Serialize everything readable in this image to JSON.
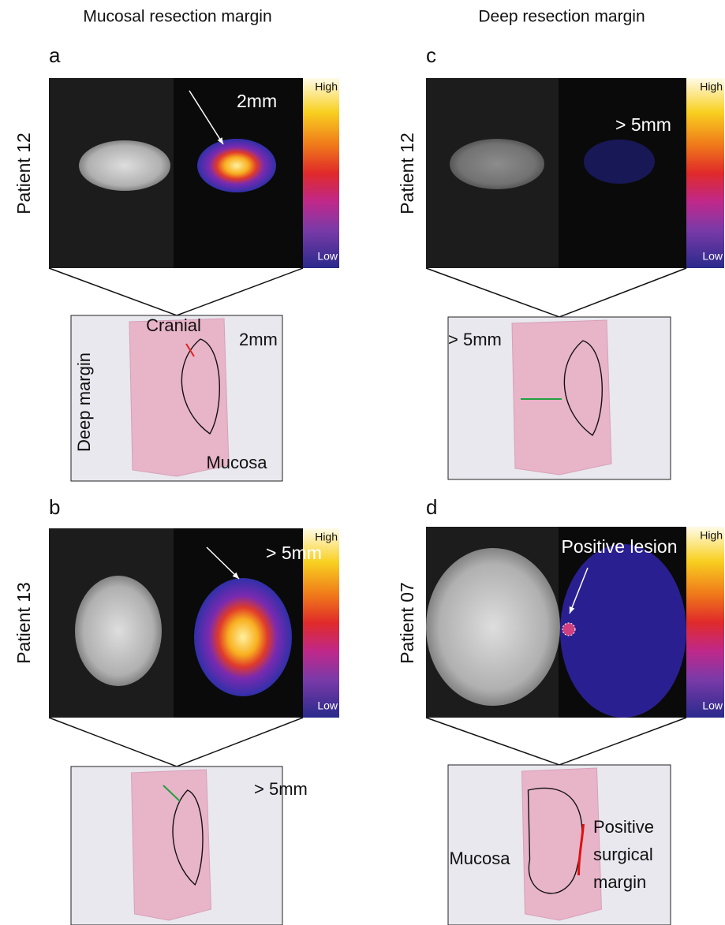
{
  "columns": [
    "Mucosal resection margin",
    "Deep resection margin"
  ],
  "panels": [
    {
      "letter": "a",
      "patient": "Patient 12",
      "annotation": "2mm",
      "colorbar": {
        "high": "High",
        "low": "Low"
      },
      "histology_labels": [
        "Cranial",
        "2mm",
        "Deep margin",
        "Mucosa"
      ]
    },
    {
      "letter": "b",
      "patient": "Patient 13",
      "annotation": "> 5mm",
      "colorbar": {
        "high": "High",
        "low": "Low"
      },
      "histology_labels": [
        "> 5mm"
      ]
    },
    {
      "letter": "c",
      "patient": "Patient 12",
      "annotation": "> 5mm",
      "colorbar": {
        "high": "High",
        "low": "Low"
      },
      "histology_labels": [
        "> 5mm"
      ]
    },
    {
      "letter": "d",
      "patient": "Patient 07",
      "annotation": "Positive lesion",
      "colorbar": {
        "high": "High",
        "low": "Low"
      },
      "histology_labels": [
        "Mucosa",
        "Positive",
        "surgical",
        "margin"
      ]
    }
  ]
}
